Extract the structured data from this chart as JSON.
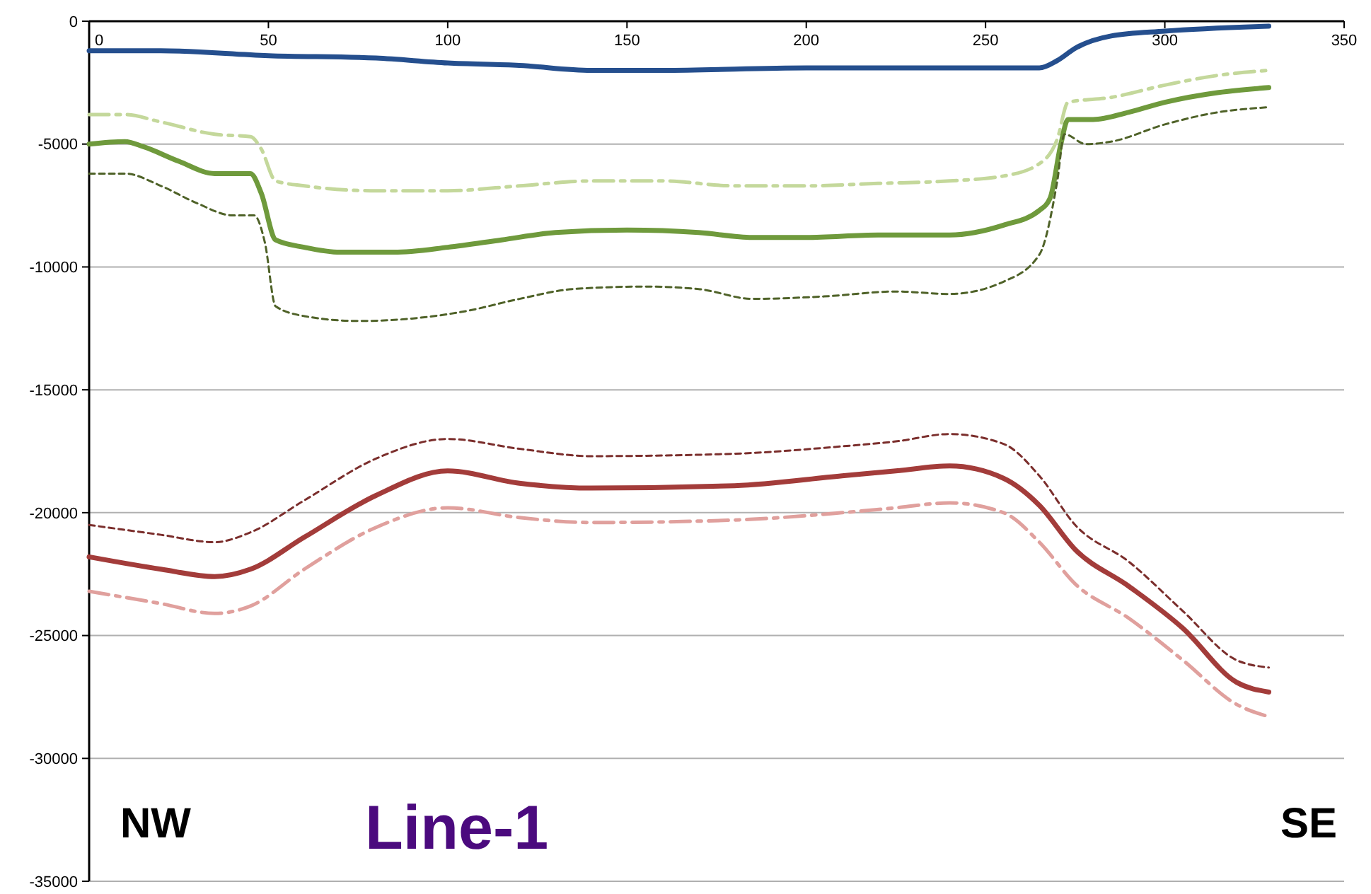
{
  "chart_data": {
    "type": "line",
    "xlim": [
      0,
      350
    ],
    "xticks": [
      0,
      50,
      100,
      150,
      200,
      250,
      300,
      350
    ],
    "ylim": [
      -35000,
      0
    ],
    "yticks": [
      0,
      -5000,
      -10000,
      -15000,
      -20000,
      -25000,
      -30000,
      -35000
    ],
    "grid": "y",
    "annotations": [
      "NW",
      "Line-1",
      "SE"
    ],
    "series": [
      {
        "color": "#254f8e",
        "line_style": "solid",
        "x": [
          0,
          20,
          50,
          80,
          100,
          120,
          140,
          160,
          200,
          240,
          265,
          270,
          275,
          285,
          300,
          329
        ],
        "values": [
          -1200,
          -1200,
          -1400,
          -1500,
          -1700,
          -1800,
          -2000,
          -2000,
          -1900,
          -1900,
          -1900,
          -1600,
          -1100,
          -600,
          -400,
          -200
        ]
      },
      {
        "color": "#c4d89b",
        "line_style": "dashdot",
        "x": [
          0,
          10,
          20,
          35,
          45,
          48,
          52,
          60,
          80,
          100,
          120,
          140,
          160,
          180,
          200,
          220,
          240,
          255,
          265,
          270,
          273,
          285,
          300,
          315,
          329
        ],
        "values": [
          -3800,
          -3800,
          -4100,
          -4600,
          -4700,
          -5200,
          -6500,
          -6700,
          -6900,
          -6900,
          -6700,
          -6500,
          -6500,
          -6700,
          -6700,
          -6600,
          -6500,
          -6300,
          -5800,
          -4800,
          -3300,
          -3100,
          -2600,
          -2200,
          -2000
        ]
      },
      {
        "color": "#6f9a3c",
        "line_style": "solid",
        "x": [
          0,
          10,
          15,
          25,
          35,
          45,
          48,
          52,
          60,
          70,
          85,
          100,
          115,
          130,
          150,
          170,
          185,
          200,
          220,
          240,
          255,
          265,
          268,
          271,
          273,
          280,
          290,
          300,
          315,
          329
        ],
        "values": [
          -5000,
          -4900,
          -5100,
          -5700,
          -6200,
          -6200,
          -7000,
          -8900,
          -9200,
          -9400,
          -9400,
          -9200,
          -8900,
          -8600,
          -8500,
          -8600,
          -8800,
          -8800,
          -8700,
          -8700,
          -8300,
          -7700,
          -7200,
          -5000,
          -4000,
          -4000,
          -3700,
          -3300,
          -2900,
          -2700
        ]
      },
      {
        "color": "#4f6228",
        "line_style": "dashed",
        "x": [
          0,
          10,
          20,
          30,
          40,
          46,
          49,
          52,
          60,
          75,
          90,
          105,
          120,
          135,
          155,
          170,
          185,
          205,
          225,
          240,
          255,
          265,
          270,
          272,
          278,
          285,
          300,
          315,
          329
        ],
        "values": [
          -6200,
          -6200,
          -6700,
          -7400,
          -7900,
          -7900,
          -9000,
          -11600,
          -12000,
          -12200,
          -12100,
          -11800,
          -11300,
          -10900,
          -10800,
          -10900,
          -11300,
          -11200,
          -11000,
          -11100,
          -10600,
          -9500,
          -6500,
          -4600,
          -5000,
          -4900,
          -4200,
          -3700,
          -3500
        ]
      },
      {
        "color": "#7b2e2c",
        "line_style": "dashed",
        "x": [
          0,
          20,
          35,
          45,
          60,
          80,
          100,
          120,
          140,
          180,
          210,
          225,
          240,
          255,
          265,
          275,
          290,
          305,
          320,
          329
        ],
        "values": [
          -20500,
          -20900,
          -21200,
          -20800,
          -19500,
          -17800,
          -17000,
          -17400,
          -17700,
          -17600,
          -17300,
          -17100,
          -16800,
          -17200,
          -18500,
          -20500,
          -22000,
          -24000,
          -26000,
          -26300
        ]
      },
      {
        "color": "#a33c3a",
        "line_style": "solid",
        "x": [
          0,
          20,
          35,
          45,
          60,
          80,
          100,
          120,
          140,
          180,
          210,
          225,
          240,
          255,
          265,
          275,
          290,
          305,
          320,
          329
        ],
        "values": [
          -21800,
          -22300,
          -22600,
          -22300,
          -21000,
          -19300,
          -18300,
          -18800,
          -19000,
          -18900,
          -18500,
          -18300,
          -18100,
          -18600,
          -19700,
          -21500,
          -23000,
          -24700,
          -26900,
          -27300
        ]
      },
      {
        "color": "#e0a09d",
        "line_style": "dashdot",
        "x": [
          0,
          20,
          35,
          45,
          60,
          80,
          100,
          120,
          140,
          180,
          210,
          225,
          240,
          255,
          265,
          275,
          290,
          305,
          320,
          329
        ],
        "values": [
          -23200,
          -23700,
          -24100,
          -23800,
          -22300,
          -20600,
          -19800,
          -20200,
          -20400,
          -20300,
          -20000,
          -19800,
          -19600,
          -20000,
          -21200,
          -22900,
          -24300,
          -26000,
          -27800,
          -28300
        ]
      }
    ]
  }
}
